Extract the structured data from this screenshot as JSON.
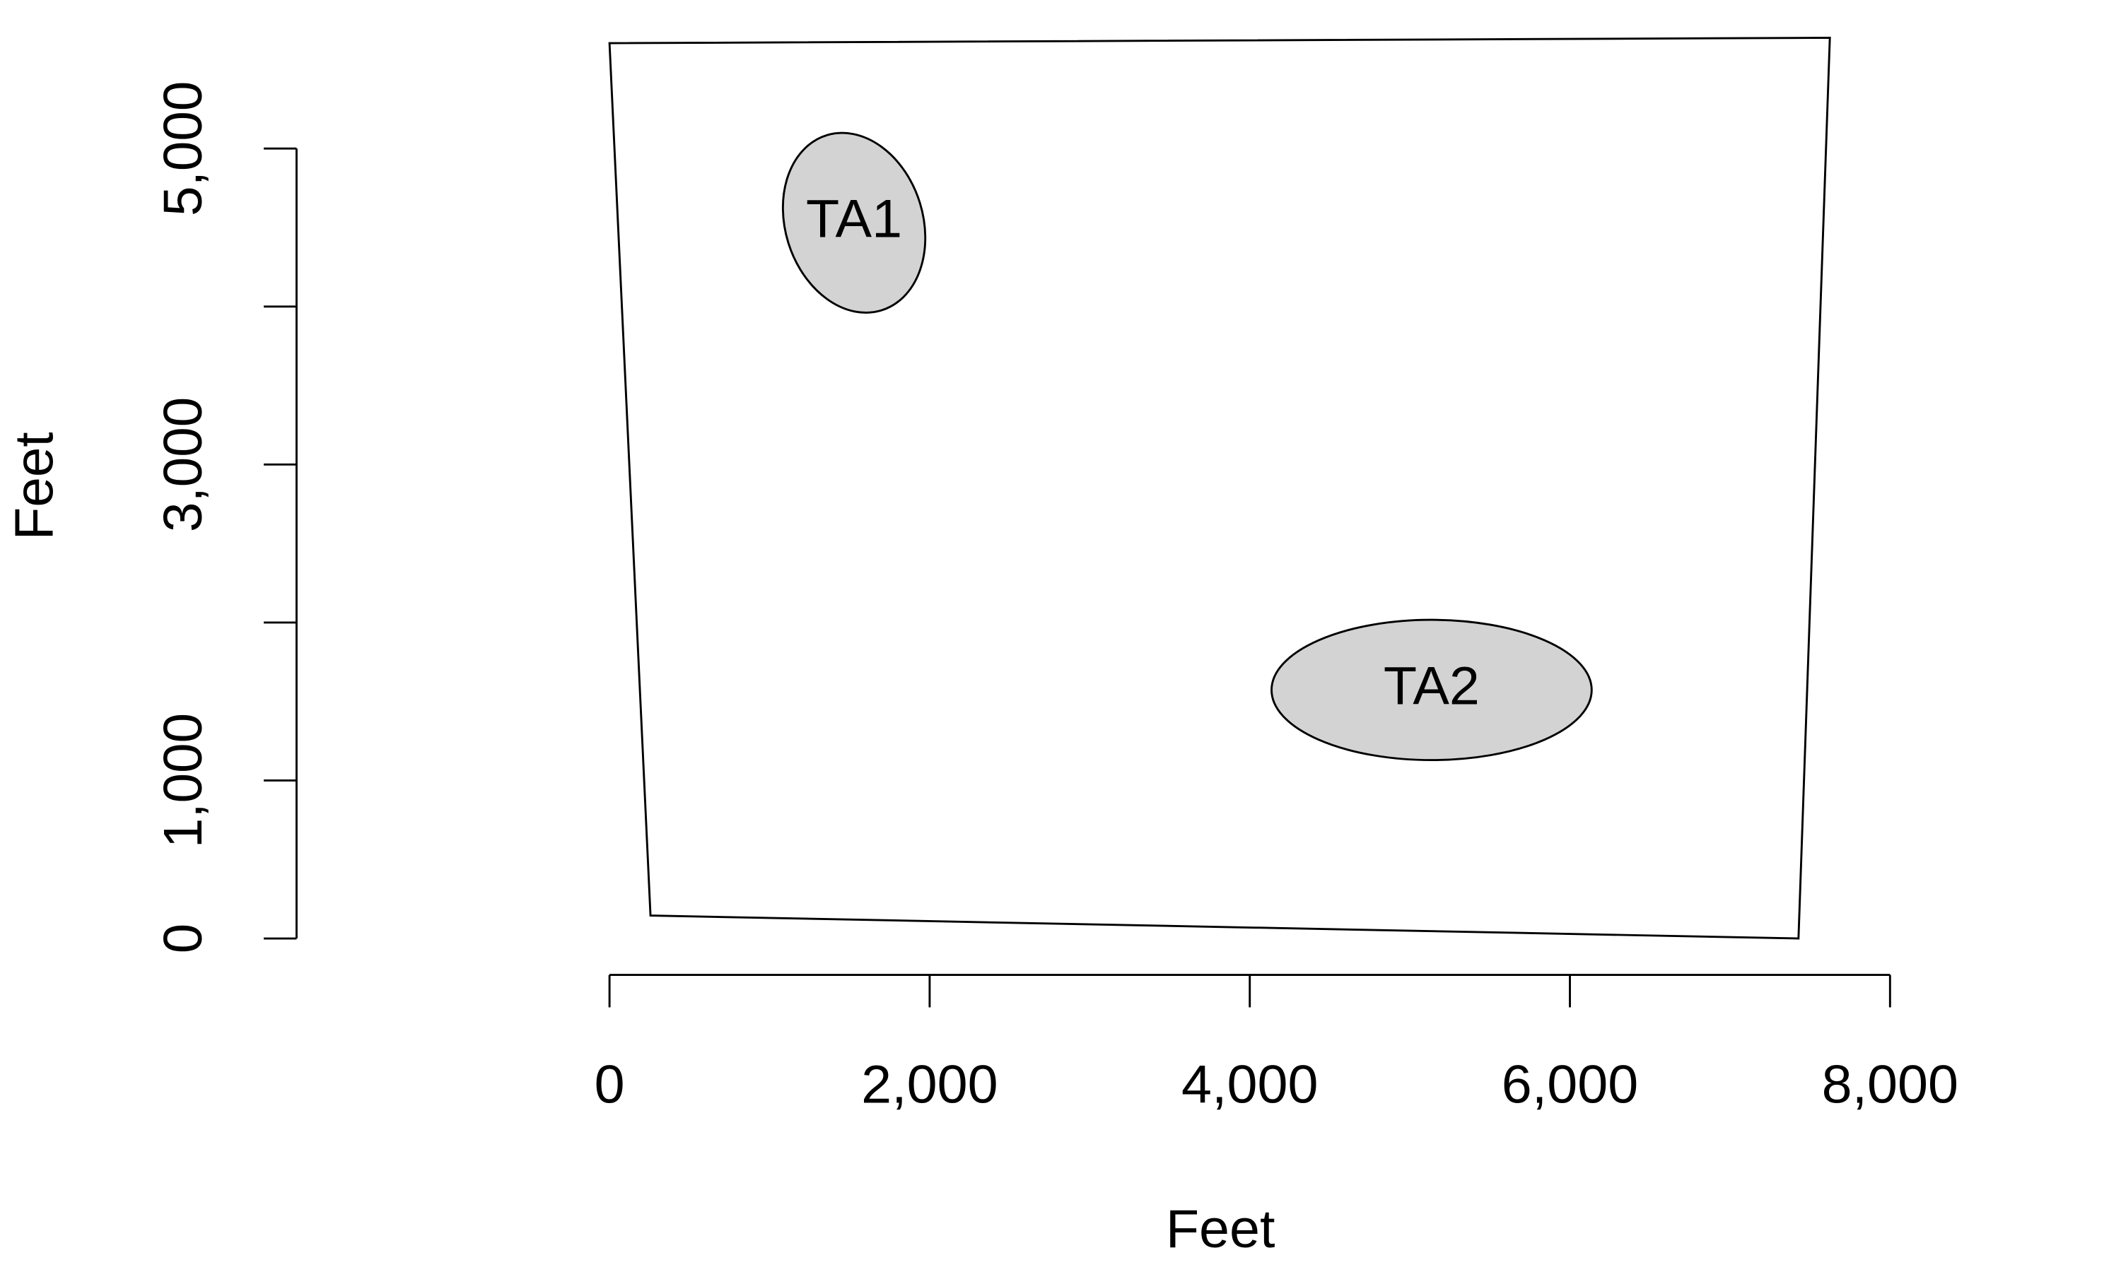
{
  "chart_data": {
    "type": "map",
    "xlabel": "Feet",
    "ylabel": "Feet",
    "xlim": [
      0,
      8000
    ],
    "ylim": [
      0,
      5000
    ],
    "xticks": [
      0,
      {
        "value": 2000,
        "label": "2,000"
      },
      {
        "value": 4000,
        "label": "4,000"
      },
      {
        "value": 6000,
        "label": "6,000"
      },
      {
        "value": 8000,
        "label": "8,000"
      }
    ],
    "yticks": [
      0,
      {
        "value": 1000,
        "label": "1,000"
      },
      {
        "value": 2000,
        "label": null
      },
      {
        "value": 3000,
        "label": "3,000"
      },
      {
        "value": 4000,
        "label": null
      },
      {
        "value": 5000,
        "label": "5,000"
      }
    ],
    "boundary": {
      "x": [
        0,
        7624,
        7428,
        256
      ],
      "y": [
        5667,
        5701,
        0,
        145
      ]
    },
    "zones": [
      {
        "name": "TA1",
        "x": 1528,
        "y": 4530,
        "rx": 430,
        "ry": 580,
        "angle": 17,
        "color": "#d3d3d3"
      },
      {
        "name": "TA2",
        "x": 5136,
        "y": 1573,
        "rx": 1000,
        "ry": 444,
        "angle": 0,
        "color": "#d3d3d3"
      }
    ]
  }
}
